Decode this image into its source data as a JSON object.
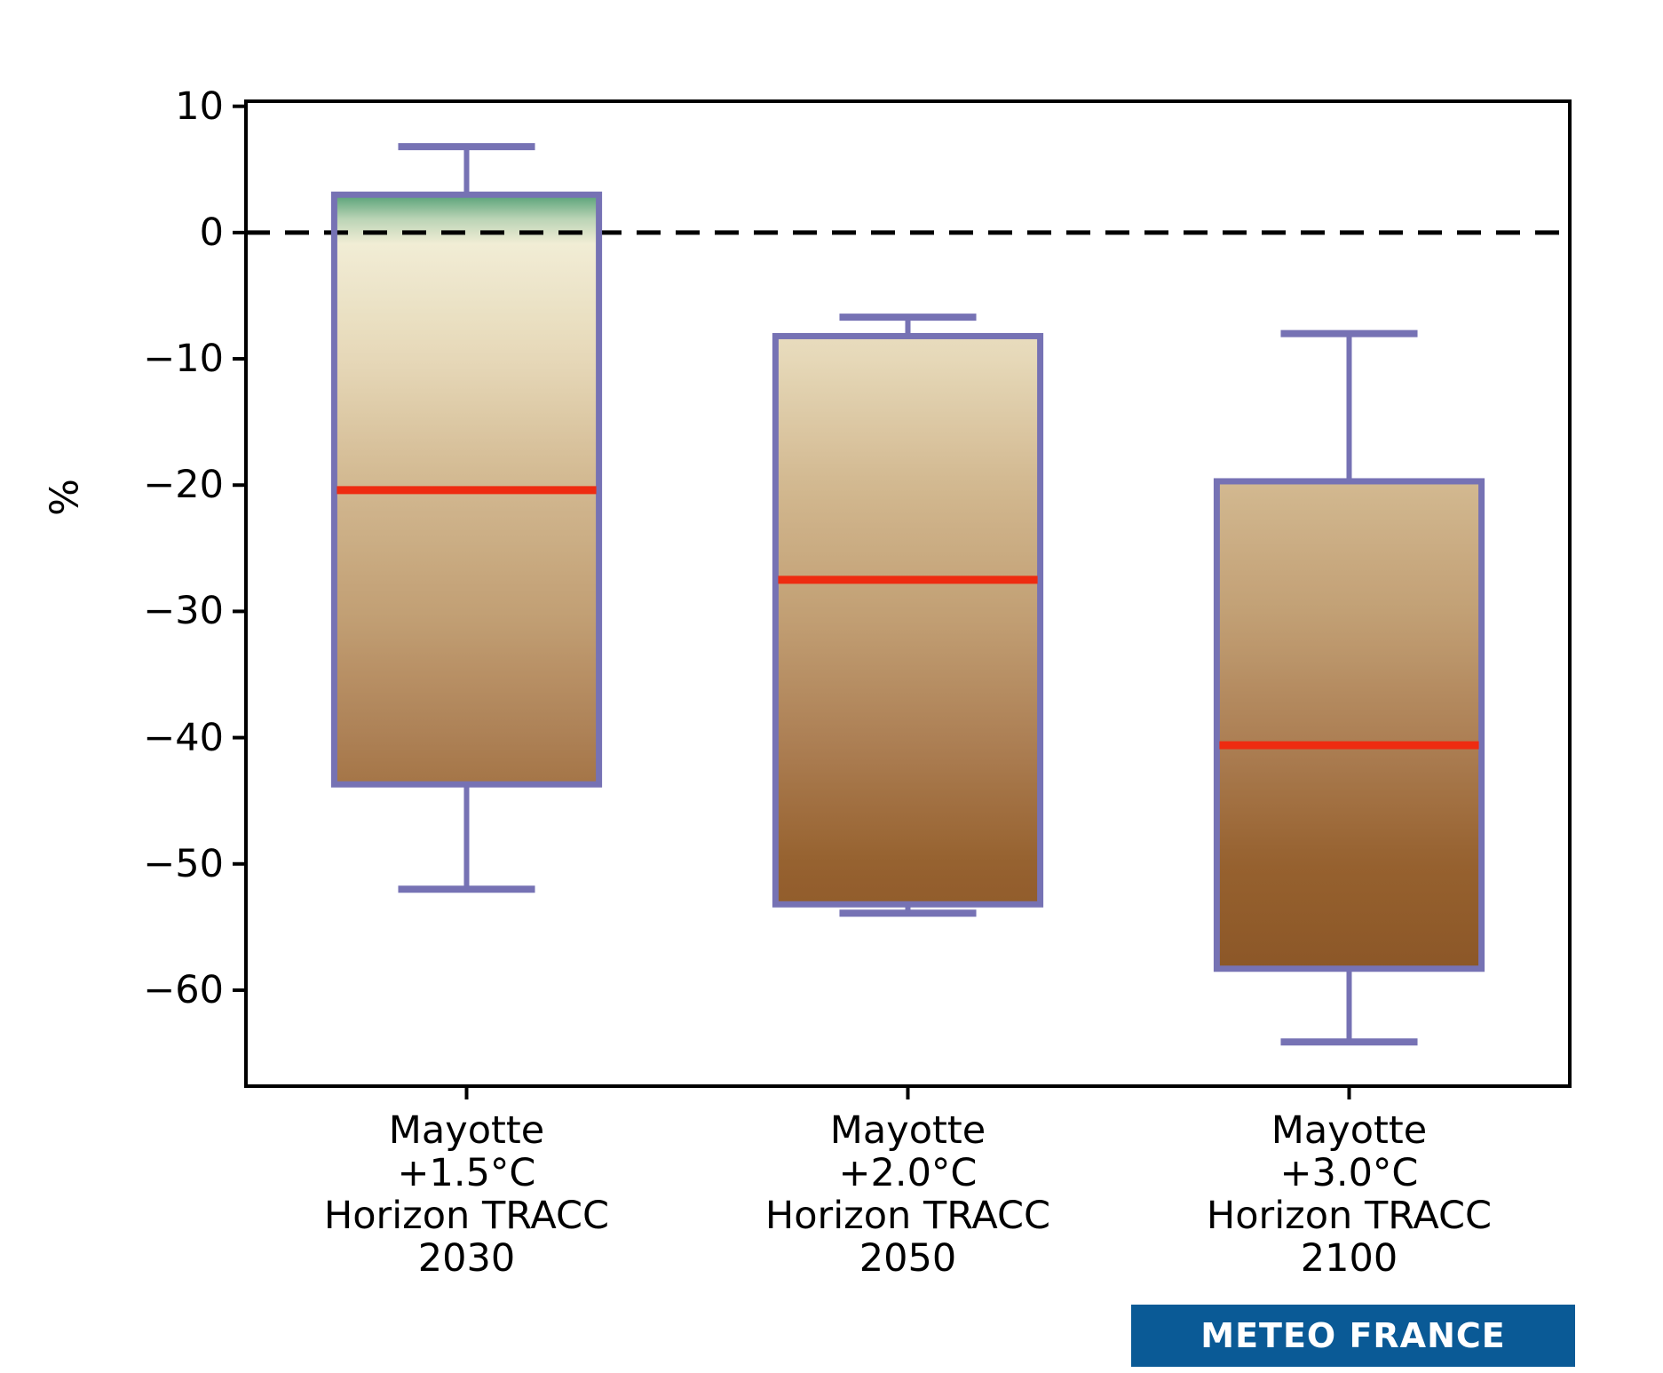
{
  "figure": {
    "background": "#ffffff",
    "logo": {
      "label": "METEO FRANCE",
      "bg_color": "#0a5a96",
      "text_color": "#ffffff"
    }
  },
  "chart_data": {
    "type": "boxplot",
    "title": "",
    "xlabel": "",
    "ylabel": "%",
    "ylim": [
      -67.6,
      10.4
    ],
    "yticks": [
      10,
      0,
      -10,
      -20,
      -30,
      -40,
      -50,
      -60
    ],
    "ytick_labels": [
      "10",
      "0",
      "−10",
      "−20",
      "−30",
      "−40",
      "−50",
      "−60"
    ],
    "grid": false,
    "zero_line": {
      "value": 0,
      "style": "dashed",
      "color": "#000000"
    },
    "colors": {
      "box_edge": "#7672b4",
      "median": "#ee2b10",
      "axis": "#000000",
      "logo_blue": "#0a5a96"
    },
    "colormap_value_to_color": [
      [
        8,
        "#46946a"
      ],
      [
        3,
        "#55a176"
      ],
      [
        0,
        "#f2efd8"
      ],
      [
        -10,
        "#e6d8b8"
      ],
      [
        -20,
        "#d2b890"
      ],
      [
        -30,
        "#c2a075"
      ],
      [
        -40,
        "#ad8055"
      ],
      [
        -50,
        "#96612f"
      ],
      [
        -60,
        "#8a5526"
      ],
      [
        -70,
        "#7d4a1e"
      ]
    ],
    "series": [
      {
        "label_lines": [
          "Mayotte",
          "+1.5°C",
          "Horizon TRACC",
          "2030"
        ],
        "whisker_low": -52.0,
        "q1": -43.7,
        "median": -20.4,
        "q3": 3.0,
        "whisker_high": 6.8
      },
      {
        "label_lines": [
          "Mayotte",
          "+2.0°C",
          "Horizon TRACC",
          "2050"
        ],
        "whisker_low": -53.9,
        "q1": -53.2,
        "median": -27.5,
        "q3": -8.2,
        "whisker_high": -6.7
      },
      {
        "label_lines": [
          "Mayotte",
          "+3.0°C",
          "Horizon TRACC",
          "2100"
        ],
        "whisker_low": -64.1,
        "q1": -58.3,
        "median": -40.6,
        "q3": -19.7,
        "whisker_high": -8.0
      }
    ]
  }
}
